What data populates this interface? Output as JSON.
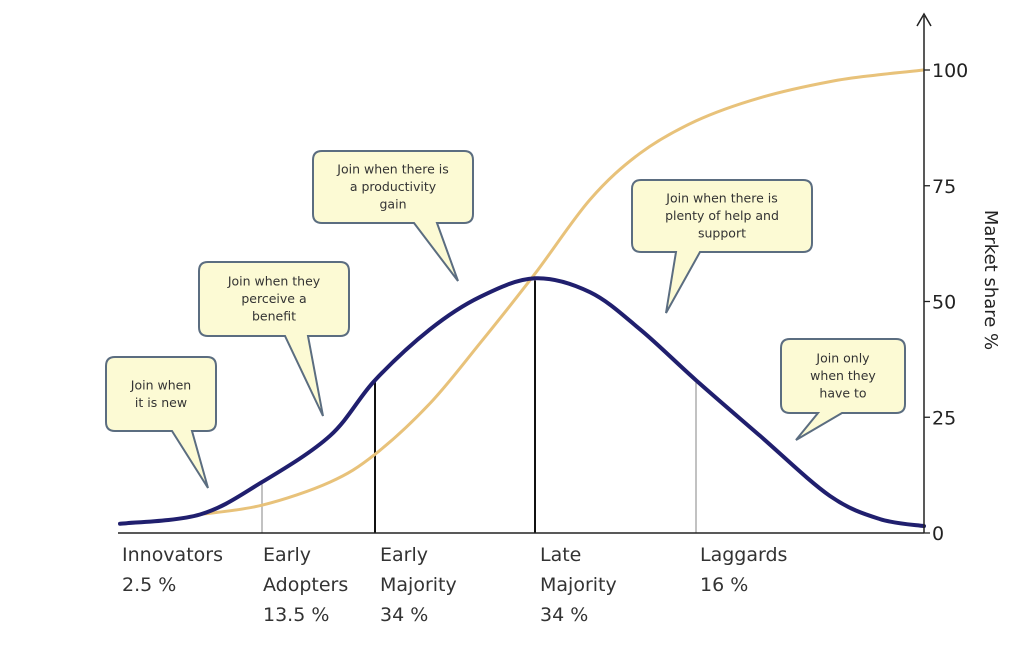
{
  "chart_data": {
    "type": "line",
    "title": "",
    "xlabel": "",
    "ylabel": "Market share %",
    "ylim": [
      0,
      100
    ],
    "yticks": [
      0,
      25,
      50,
      75,
      100
    ],
    "y_axis_side": "right",
    "series": [
      {
        "kind": "bell-curve",
        "color": "#201F6E",
        "x": [
          120,
          200,
          262,
          330,
          375,
          430,
          480,
          535,
          590,
          640,
          696,
          760,
          830,
          880,
          924
        ],
        "y": [
          2,
          4,
          11,
          21,
          33,
          44,
          51,
          55,
          52,
          44,
          33,
          21,
          8,
          3,
          1.5
        ]
      },
      {
        "kind": "s-curve",
        "color": "#E8C27A",
        "x": [
          200,
          262,
          330,
          375,
          430,
          480,
          535,
          590,
          640,
          696,
          760,
          830,
          880,
          924
        ],
        "y": [
          4,
          6,
          11,
          17,
          28,
          41,
          56,
          72,
          82,
          89,
          94,
          97.5,
          99,
          100
        ]
      }
    ],
    "dividers_x": [
      262,
      375,
      535,
      696
    ],
    "categories": [
      {
        "name": "Innovators",
        "share": "2.5 %"
      },
      {
        "name": "Early\nAdopters",
        "share": "13.5 %"
      },
      {
        "name": "Early\nMajority",
        "share": "34 %"
      },
      {
        "name": "Late\nMajority",
        "share": "34 %"
      },
      {
        "name": "Laggards",
        "share": "16 %"
      }
    ],
    "callouts": [
      {
        "lines": [
          "Join when",
          "it is new"
        ]
      },
      {
        "lines": [
          "Join when they",
          "perceive a",
          "benefit"
        ]
      },
      {
        "lines": [
          "Join when there is",
          "a productivity",
          "gain"
        ]
      },
      {
        "lines": [
          "Join when there is",
          "plenty of help and",
          "support"
        ]
      },
      {
        "lines": [
          "Join only",
          "when they",
          "have to"
        ]
      }
    ],
    "colors": {
      "bell": "#201F6E",
      "scurve": "#E8C27A",
      "callout_fill": "#FCFAD4",
      "callout_stroke": "#5B6D80"
    }
  }
}
